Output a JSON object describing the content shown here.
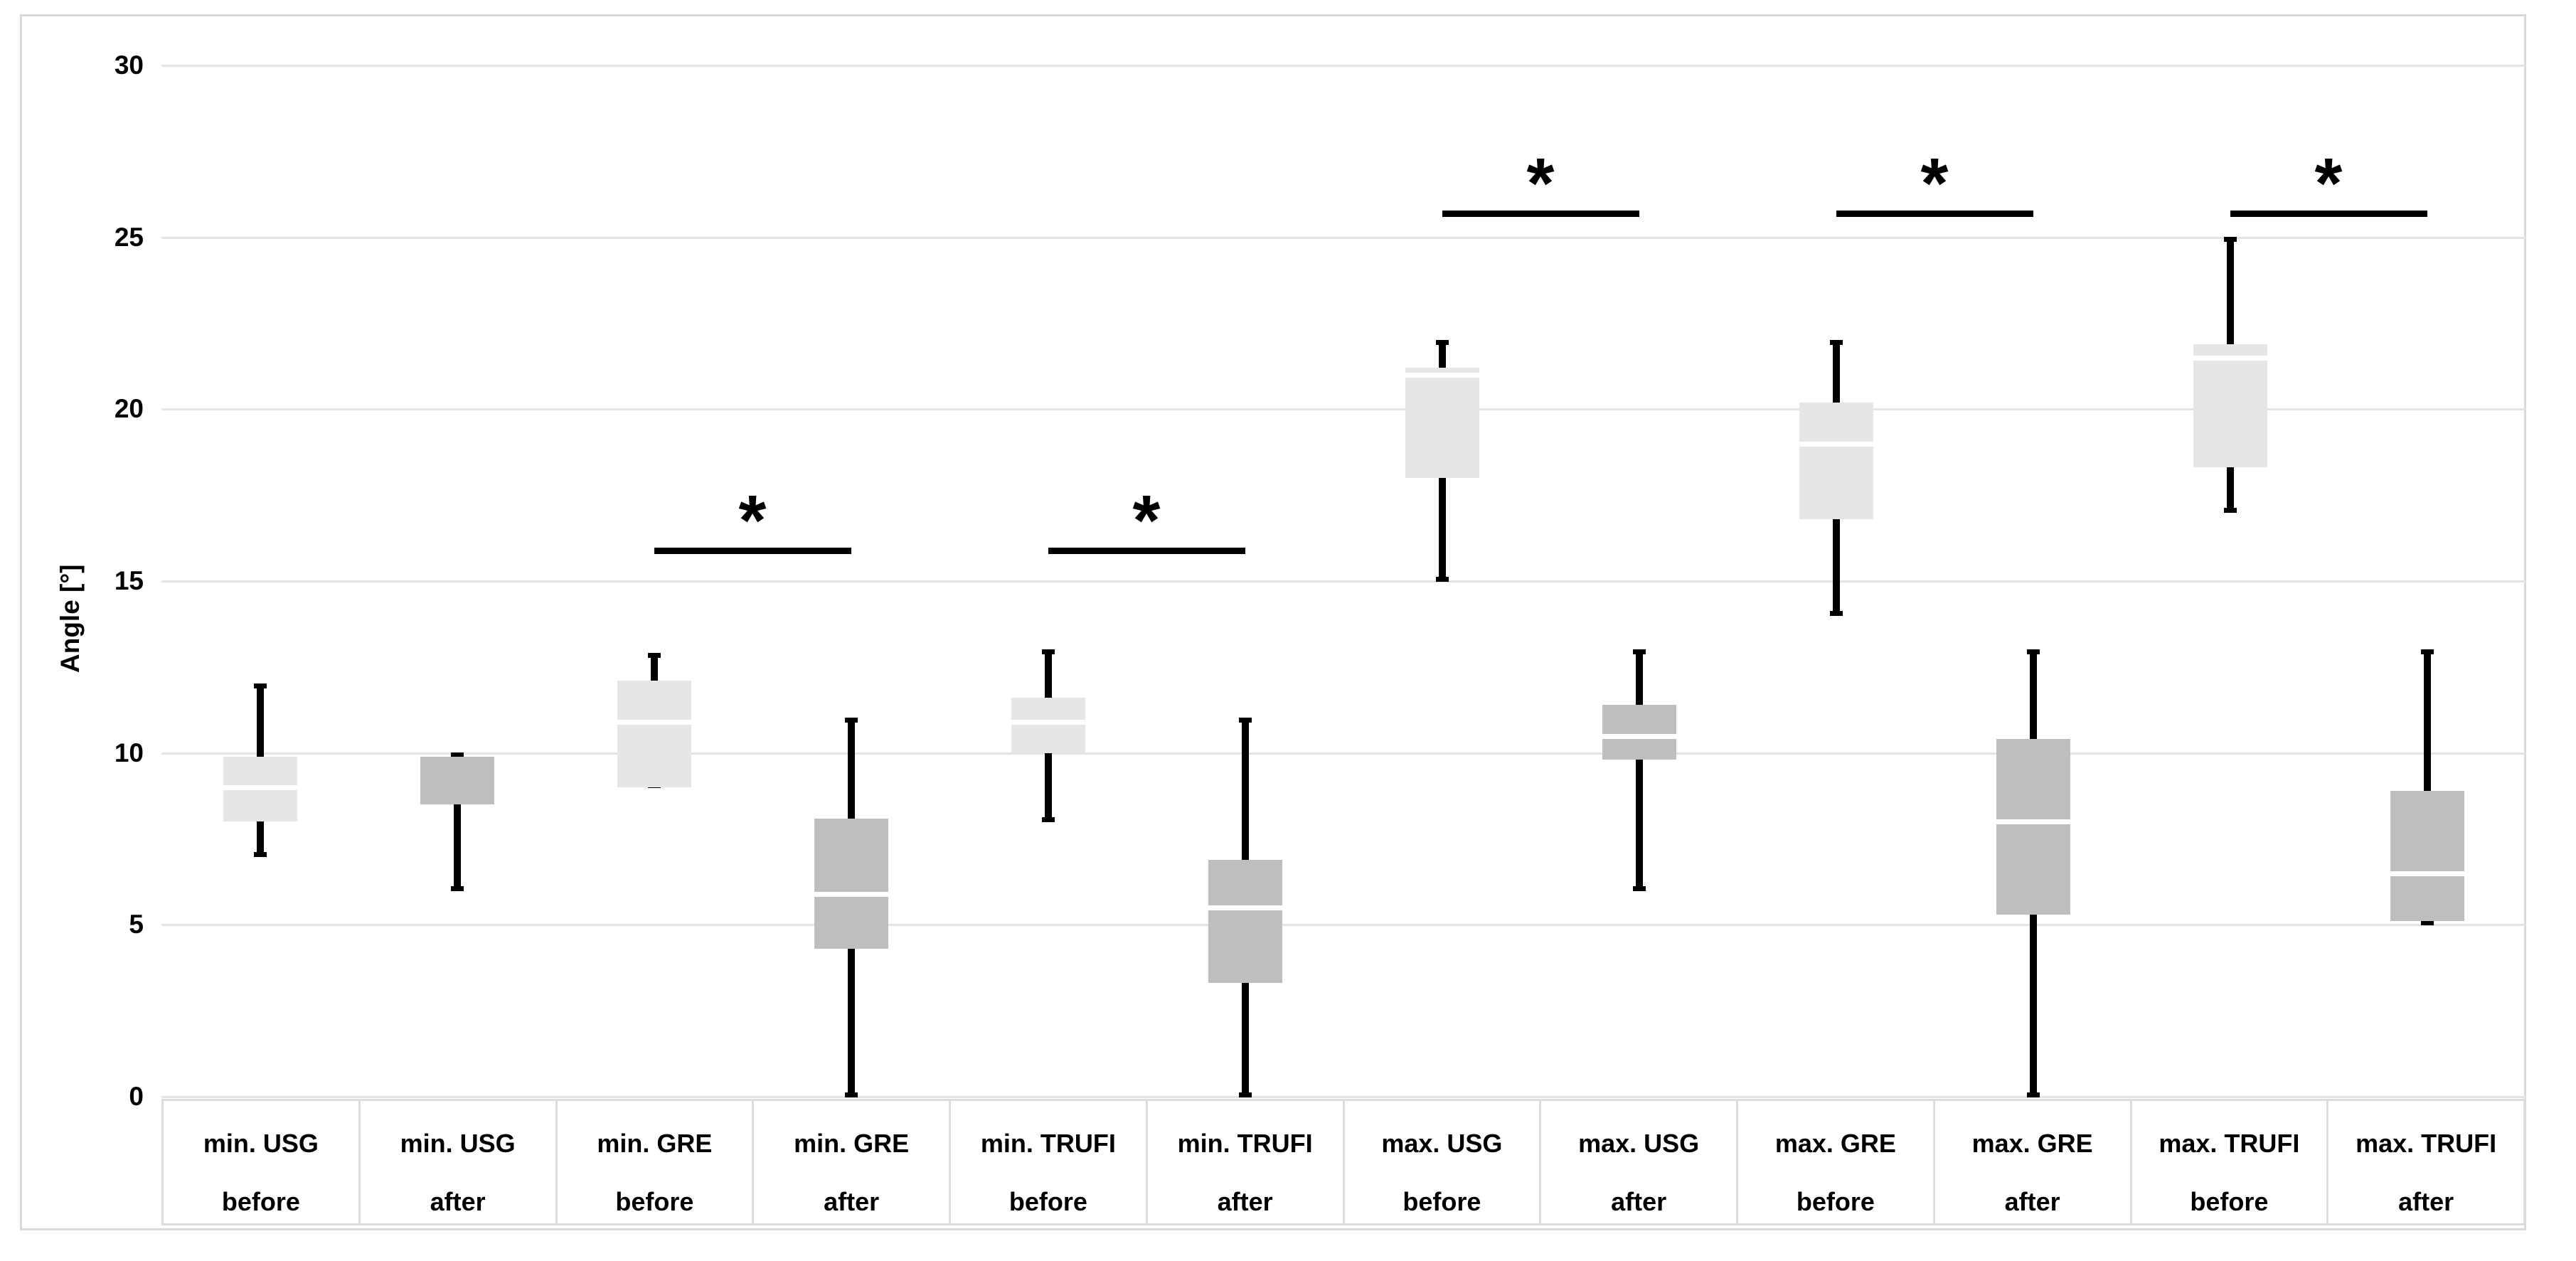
{
  "chart_data": {
    "type": "boxplot",
    "title": "",
    "ylabel": "Angle [°]",
    "ylim": [
      0,
      30
    ],
    "yticks": [
      0,
      5,
      10,
      15,
      20,
      25,
      30
    ],
    "grid": true,
    "legend": "none",
    "colors": {
      "box_before": "#e7e6e6",
      "box_after": "#bfbebe",
      "whisker": "#000000",
      "median_line": "#ffffff",
      "gridline": "#e4e4e4",
      "cell_border": "#dcdcdc",
      "text": "#000000"
    },
    "boxes": [
      {
        "label_top": "min. USG",
        "label_bottom": "before",
        "shade": "before",
        "whisker_low": 7,
        "q1": 8.0,
        "median": 9.0,
        "q3": 9.9,
        "whisker_high": 12
      },
      {
        "label_top": "min. USG",
        "label_bottom": "after",
        "shade": "after",
        "whisker_low": 6,
        "q1": 8.5,
        "median": 9.9,
        "q3": 9.9,
        "whisker_high": 10
      },
      {
        "label_top": "min. GRE",
        "label_bottom": "before",
        "shade": "before",
        "whisker_low": 9,
        "q1": 9.0,
        "median": 10.9,
        "q3": 12.1,
        "whisker_high": 12.9
      },
      {
        "label_top": "min. GRE",
        "label_bottom": "after",
        "shade": "after",
        "whisker_low": 0,
        "q1": 4.3,
        "median": 5.9,
        "q3": 8.1,
        "whisker_high": 11
      },
      {
        "label_top": "min. TRUFI",
        "label_bottom": "before",
        "shade": "before",
        "whisker_low": 8,
        "q1": 10.0,
        "median": 10.9,
        "q3": 11.6,
        "whisker_high": 13
      },
      {
        "label_top": "min. TRUFI",
        "label_bottom": "after",
        "shade": "after",
        "whisker_low": 0,
        "q1": 3.3,
        "median": 5.5,
        "q3": 6.9,
        "whisker_high": 11
      },
      {
        "label_top": "max. USG",
        "label_bottom": "before",
        "shade": "before",
        "whisker_low": 15,
        "q1": 18.0,
        "median": 21.0,
        "q3": 21.2,
        "whisker_high": 22
      },
      {
        "label_top": "max. USG",
        "label_bottom": "after",
        "shade": "after",
        "whisker_low": 6,
        "q1": 9.8,
        "median": 10.5,
        "q3": 11.4,
        "whisker_high": 13
      },
      {
        "label_top": "max. GRE",
        "label_bottom": "before",
        "shade": "before",
        "whisker_low": 14,
        "q1": 16.8,
        "median": 19.0,
        "q3": 20.2,
        "whisker_high": 22
      },
      {
        "label_top": "max. GRE",
        "label_bottom": "after",
        "shade": "after",
        "whisker_low": 0,
        "q1": 5.3,
        "median": 8.0,
        "q3": 10.4,
        "whisker_high": 13
      },
      {
        "label_top": "max. TRUFI",
        "label_bottom": "before",
        "shade": "before",
        "whisker_low": 17,
        "q1": 18.3,
        "median": 21.5,
        "q3": 21.9,
        "whisker_high": 25
      },
      {
        "label_top": "max. TRUFI",
        "label_bottom": "after",
        "shade": "after",
        "whisker_low": 5,
        "q1": 5.1,
        "median": 6.5,
        "q3": 8.9,
        "whisker_high": 13
      }
    ],
    "significance_bars": [
      {
        "pair": "min. GRE before vs min. GRE after",
        "from_index": 2,
        "to_index": 3,
        "y": 15.9,
        "symbol": "*"
      },
      {
        "pair": "min. TRUFI before vs min. TRUFI after",
        "from_index": 4,
        "to_index": 5,
        "y": 15.9,
        "symbol": "*"
      },
      {
        "pair": "max. USG before vs max. USG after",
        "from_index": 6,
        "to_index": 7,
        "y": 25.7,
        "symbol": "*"
      },
      {
        "pair": "max. GRE before vs max. GRE after",
        "from_index": 8,
        "to_index": 9,
        "y": 25.7,
        "symbol": "*"
      },
      {
        "pair": "max. TRUFI before vs max. TRUFI after",
        "from_index": 10,
        "to_index": 11,
        "y": 25.7,
        "symbol": "*"
      }
    ]
  }
}
